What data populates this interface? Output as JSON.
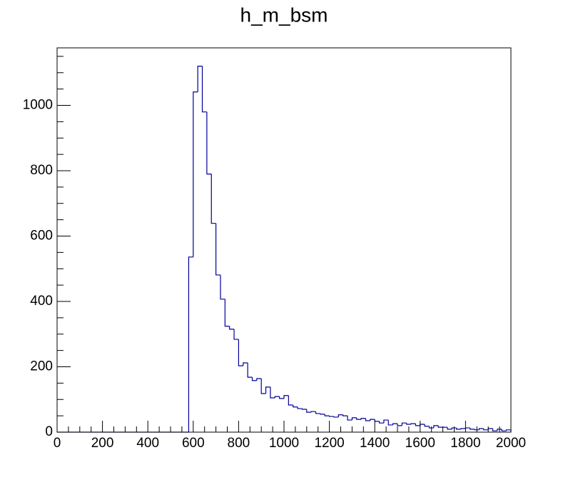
{
  "chart_data": {
    "type": "histogram",
    "title": "h_m_bsm",
    "color": "#000099",
    "bins": [
      0,
      20,
      40,
      60,
      80,
      100,
      120,
      140,
      160,
      180,
      200,
      220,
      240,
      260,
      280,
      300,
      320,
      340,
      360,
      380,
      400,
      420,
      440,
      460,
      480,
      500,
      520,
      540,
      560,
      580,
      600,
      620,
      640,
      660,
      680,
      700,
      720,
      740,
      760,
      780,
      800,
      820,
      840,
      860,
      880,
      900,
      920,
      940,
      960,
      980,
      1000,
      1020,
      1040,
      1060,
      1080,
      1100,
      1120,
      1140,
      1160,
      1180,
      1200,
      1220,
      1240,
      1260,
      1280,
      1300,
      1320,
      1340,
      1360,
      1380,
      1400,
      1420,
      1440,
      1460,
      1480,
      1500,
      1520,
      1540,
      1560,
      1580,
      1600,
      1620,
      1640,
      1660,
      1680,
      1700,
      1720,
      1740,
      1760,
      1780,
      1800,
      1820,
      1840,
      1860,
      1880,
      1900,
      1920,
      1940,
      1960,
      1980,
      2000
    ],
    "counts": [
      0,
      0,
      0,
      0,
      0,
      0,
      0,
      0,
      0,
      0,
      0,
      0,
      0,
      0,
      0,
      0,
      0,
      0,
      0,
      0,
      0,
      0,
      0,
      0,
      0,
      0,
      0,
      0,
      0,
      536,
      1041,
      1120,
      980,
      790,
      639,
      481,
      407,
      324,
      315,
      284,
      203,
      212,
      168,
      158,
      164,
      118,
      138,
      105,
      109,
      103,
      112,
      83,
      77,
      72,
      70,
      61,
      63,
      57,
      55,
      50,
      48,
      46,
      53,
      50,
      37,
      44,
      39,
      42,
      35,
      39,
      33,
      28,
      37,
      22,
      26,
      20,
      28,
      24,
      26,
      20,
      24,
      18,
      13,
      20,
      15,
      15,
      9,
      13,
      9,
      11,
      13,
      9,
      7,
      11,
      7,
      11,
      4,
      9,
      4,
      7
    ],
    "xlim": [
      0,
      2000
    ],
    "ylim": [
      0,
      1176
    ],
    "xticks": [
      0,
      200,
      400,
      600,
      800,
      1000,
      1200,
      1400,
      1600,
      1800,
      2000
    ],
    "yticks": [
      0,
      200,
      400,
      600,
      800,
      1000
    ]
  }
}
